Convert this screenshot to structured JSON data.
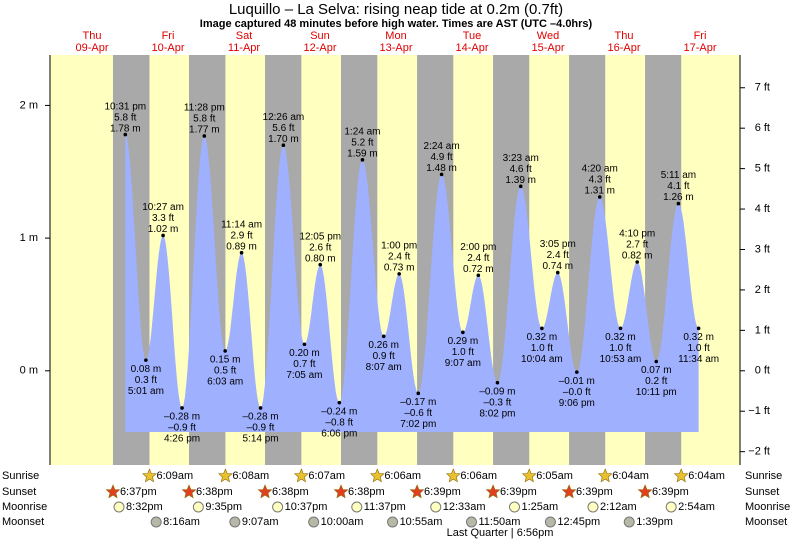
{
  "chart_data": {
    "type": "area",
    "title": "Luquillo – La Selva: rising  neap tide at 0.2m (0.7ft)",
    "subtitle": "Image captured 48 minutes before high water. Times are AST (UTC –4.0hrs)",
    "color": "#9fb0ff",
    "ylim": [
      -0.71,
      2.38
    ],
    "yticks": [
      {
        "value": 0,
        "label": "0 m"
      },
      {
        "value": 1,
        "label": "1 m"
      },
      {
        "value": 2,
        "label": "2 m"
      }
    ],
    "y2lim": [
      -2.33,
      7.81
    ],
    "y2ticks": [
      {
        "value": -2,
        "label": "−2 ft"
      },
      {
        "value": -1,
        "label": "−1 ft"
      },
      {
        "value": 0,
        "label": "0 ft"
      },
      {
        "value": 1,
        "label": "1 ft"
      },
      {
        "value": 2,
        "label": "2 ft"
      },
      {
        "value": 3,
        "label": "3 ft"
      },
      {
        "value": 4,
        "label": "4 ft"
      },
      {
        "value": 5,
        "label": "5 ft"
      },
      {
        "value": 6,
        "label": "6 ft"
      },
      {
        "value": 7,
        "label": "7 ft"
      }
    ],
    "row_labels": {
      "sunrise": "Sunrise",
      "sunset": "Sunset",
      "moonrise": "Moonrise",
      "moonset": "Moonset"
    },
    "moon_phase": "Last Quarter | 6:56pm",
    "days": [
      {
        "weekday": "Thu",
        "date": "09-Apr",
        "sunset": "6:37pm",
        "moonrise": "8:32pm",
        "tides": [
          {
            "time": "10:31 pm",
            "value": 1.78,
            "value_label": "1.78 m",
            "ft_label": "5.8 ft"
          }
        ]
      },
      {
        "weekday": "Fri",
        "date": "10-Apr",
        "sunrise": "6:09am",
        "sunset": "6:38pm",
        "moonrise": "9:35pm",
        "moonset": "8:16am",
        "tides": [
          {
            "time": "5:01 am",
            "value": 0.08,
            "value_label": "0.08 m",
            "ft_label": "0.3 ft"
          },
          {
            "time": "10:27 am",
            "value": 1.02,
            "value_label": "1.02 m",
            "ft_label": "3.3 ft"
          },
          {
            "time": "4:26 pm",
            "value": -0.28,
            "value_label": "–0.28 m",
            "ft_label": "–0.9 ft"
          },
          {
            "time": "11:28 pm",
            "value": 1.77,
            "value_label": "1.77 m",
            "ft_label": "5.8 ft"
          }
        ]
      },
      {
        "weekday": "Sat",
        "date": "11-Apr",
        "sunrise": "6:08am",
        "sunset": "6:38pm",
        "moonrise": "10:37pm",
        "moonset": "9:07am",
        "tides": [
          {
            "time": "6:03 am",
            "value": 0.15,
            "value_label": "0.15 m",
            "ft_label": "0.5 ft"
          },
          {
            "time": "11:14 am",
            "value": 0.89,
            "value_label": "0.89 m",
            "ft_label": "2.9 ft"
          },
          {
            "time": "5:14 pm",
            "value": -0.28,
            "value_label": "–0.28 m",
            "ft_label": "–0.9 ft"
          }
        ]
      },
      {
        "weekday": "Sun",
        "date": "12-Apr",
        "sunrise": "6:07am",
        "sunset": "6:38pm",
        "moonrise": "11:37pm",
        "moonset": "10:00am",
        "tides": [
          {
            "time": "12:26 am",
            "value": 1.7,
            "value_label": "1.70 m",
            "ft_label": "5.6 ft"
          },
          {
            "time": "7:05 am",
            "value": 0.2,
            "value_label": "0.20 m",
            "ft_label": "0.7 ft"
          },
          {
            "time": "12:05 pm",
            "value": 0.8,
            "value_label": "0.80 m",
            "ft_label": "2.6 ft"
          },
          {
            "time": "6:06 pm",
            "value": -0.24,
            "value_label": "–0.24 m",
            "ft_label": "–0.8 ft"
          }
        ]
      },
      {
        "weekday": "Mon",
        "date": "13-Apr",
        "sunrise": "6:06am",
        "sunset": "6:39pm",
        "moonset": "10:55am",
        "tides": [
          {
            "time": "1:24 am",
            "value": 1.59,
            "value_label": "1.59 m",
            "ft_label": "5.2 ft"
          },
          {
            "time": "8:07 am",
            "value": 0.26,
            "value_label": "0.26 m",
            "ft_label": "0.9 ft"
          },
          {
            "time": "1:00 pm",
            "value": 0.73,
            "value_label": "0.73 m",
            "ft_label": "2.4 ft"
          },
          {
            "time": "7:02 pm",
            "value": -0.17,
            "value_label": "–0.17 m",
            "ft_label": "–0.6 ft"
          }
        ]
      },
      {
        "weekday": "Tue",
        "date": "14-Apr",
        "sunrise": "6:06am",
        "sunset": "6:39pm",
        "moonrise": "12:33am",
        "moonset": "11:50am",
        "tides": [
          {
            "time": "2:24 am",
            "value": 1.48,
            "value_label": "1.48 m",
            "ft_label": "4.9 ft"
          },
          {
            "time": "9:07 am",
            "value": 0.29,
            "value_label": "0.29 m",
            "ft_label": "1.0 ft"
          },
          {
            "time": "2:00 pm",
            "value": 0.72,
            "value_label": "0.72 m",
            "ft_label": "2.4 ft"
          },
          {
            "time": "8:02 pm",
            "value": -0.09,
            "value_label": "–0.09 m",
            "ft_label": "–0.3 ft"
          }
        ]
      },
      {
        "weekday": "Wed",
        "date": "15-Apr",
        "sunrise": "6:05am",
        "sunset": "6:39pm",
        "moonrise": "1:25am",
        "moonset": "12:45pm",
        "tides": [
          {
            "time": "3:23 am",
            "value": 1.39,
            "value_label": "1.39 m",
            "ft_label": "4.6 ft"
          },
          {
            "time": "10:04 am",
            "value": 0.32,
            "value_label": "0.32 m",
            "ft_label": "1.0 ft"
          },
          {
            "time": "3:05 pm",
            "value": 0.74,
            "value_label": "0.74 m",
            "ft_label": "2.4 ft"
          },
          {
            "time": "9:06 pm",
            "value": -0.01,
            "value_label": "–0.01 m",
            "ft_label": "–0.0 ft"
          }
        ]
      },
      {
        "weekday": "Thu",
        "date": "16-Apr",
        "sunrise": "6:04am",
        "sunset": "6:39pm",
        "moonrise": "2:12am",
        "moonset": "1:39pm",
        "tides": [
          {
            "time": "4:20 am",
            "value": 1.31,
            "value_label": "1.31 m",
            "ft_label": "4.3 ft"
          },
          {
            "time": "10:53 am",
            "value": 0.32,
            "value_label": "0.32 m",
            "ft_label": "1.0 ft"
          },
          {
            "time": "4:10 pm",
            "value": 0.82,
            "value_label": "0.82 m",
            "ft_label": "2.7 ft"
          },
          {
            "time": "10:11 pm",
            "value": 0.07,
            "value_label": "0.07 m",
            "ft_label": "0.2 ft"
          }
        ]
      },
      {
        "weekday": "Fri",
        "date": "17-Apr",
        "sunrise": "6:04am",
        "moonrise": "2:54am",
        "tides": [
          {
            "time": "5:11 am",
            "value": 1.26,
            "value_label": "1.26 m",
            "ft_label": "4.1 ft"
          },
          {
            "time": "11:34 am",
            "value": 0.32,
            "value_label": "0.32 m",
            "ft_label": "1.0 ft"
          }
        ]
      }
    ]
  }
}
